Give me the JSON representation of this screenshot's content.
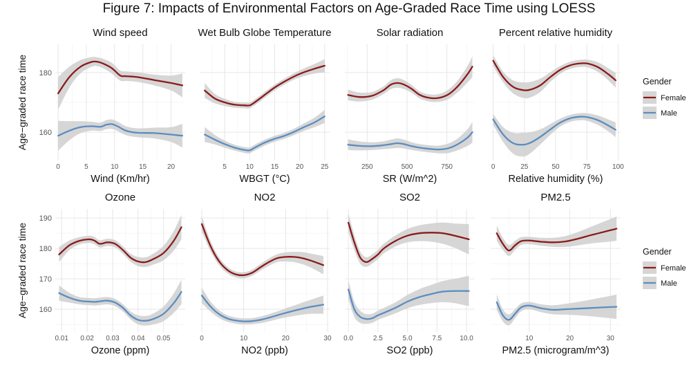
{
  "figure_title": "Figure 7: Impacts of Environmental Factors on Age-Graded Race Time using LOESS",
  "y_label": "Age−graded race time",
  "legend": {
    "title": "Gender",
    "entries": [
      {
        "label": "Female",
        "color": "#8B1A1A"
      },
      {
        "label": "Male",
        "color": "#5B8DC0"
      }
    ]
  },
  "colors": {
    "female": "#8B1A1A",
    "male": "#5B8DC0",
    "band": "#CFCFCF",
    "panel_bg": "#FFFFFF",
    "grid_major": "#E6E6E6",
    "grid_minor": "#F3F3F3"
  },
  "chart_data": [
    {
      "type": "line",
      "title": "Wind speed",
      "xlabel": "Wind  (Km/hr)",
      "ylabel": "Age−graded race time",
      "xlim": [
        -0.5,
        22.5
      ],
      "ylim": [
        150.5,
        189.5
      ],
      "xticks": [
        0,
        5,
        10,
        15,
        20
      ],
      "yticks": [
        160,
        180
      ],
      "series": [
        {
          "name": "Female",
          "x": [
            0,
            2,
            4,
            6,
            7,
            8,
            9.5,
            11,
            12,
            14,
            17,
            20,
            22
          ],
          "y": [
            173,
            178.5,
            182,
            183.6,
            183.6,
            183,
            181.5,
            179,
            178.8,
            178.5,
            177.5,
            176.5,
            175.7
          ],
          "band": [
            5.5,
            3.5,
            2.2,
            1.6,
            1.5,
            1.6,
            1.8,
            1.7,
            1.6,
            1.6,
            1.8,
            2.5,
            4
          ]
        },
        {
          "name": "Male",
          "x": [
            0,
            2,
            4,
            6,
            7.5,
            8.5,
            9.5,
            10.5,
            12,
            14,
            17,
            20,
            22
          ],
          "y": [
            158.8,
            160.5,
            161.7,
            162,
            161.8,
            162.5,
            162.7,
            162,
            160.5,
            159.8,
            159.7,
            159.2,
            158.8
          ],
          "band": [
            5,
            3.2,
            2,
            1.5,
            1.4,
            1.5,
            1.6,
            1.6,
            1.5,
            1.5,
            1.8,
            2.5,
            4
          ]
        }
      ]
    },
    {
      "type": "line",
      "title": "Wet Bulb Globe Temperature",
      "xlabel": "WBGT  (°C)",
      "ylabel": "Age−graded race time",
      "xlim": [
        0,
        26
      ],
      "ylim": [
        150.5,
        189.5
      ],
      "xticks": [
        5,
        10,
        15,
        20,
        25
      ],
      "yticks": [
        160,
        180
      ],
      "series": [
        {
          "name": "Female",
          "x": [
            1,
            3,
            5,
            7,
            9,
            10,
            11,
            13,
            15,
            17,
            19,
            21,
            23,
            25
          ],
          "y": [
            174,
            171.3,
            170,
            169.2,
            169,
            169,
            170,
            172.5,
            175,
            177,
            178.8,
            180.2,
            181.3,
            182.3
          ],
          "band": [
            2.5,
            1.6,
            1.2,
            1,
            1,
            1,
            1,
            1,
            1,
            1,
            1.1,
            1.3,
            1.6,
            2.2
          ]
        },
        {
          "name": "Male",
          "x": [
            1,
            3,
            5,
            7,
            9,
            10,
            11,
            13,
            15,
            17,
            19,
            21,
            23,
            25
          ],
          "y": [
            159.2,
            157.5,
            156,
            154.8,
            154,
            153.9,
            154.8,
            156.5,
            157.8,
            158.8,
            160.2,
            161.8,
            163.3,
            165.3
          ],
          "band": [
            2.5,
            1.6,
            1.2,
            1,
            1,
            1,
            1,
            1,
            1,
            1,
            1.1,
            1.3,
            1.6,
            2.2
          ]
        }
      ]
    },
    {
      "type": "line",
      "title": "Solar radiation",
      "xlabel": "SR  (W/m^2)",
      "ylabel": "Age−graded race time",
      "xlim": [
        110,
        925
      ],
      "ylim": [
        150.5,
        189.5
      ],
      "xticks": [
        250,
        500,
        750
      ],
      "yticks": [
        160,
        180
      ],
      "series": [
        {
          "name": "Female",
          "x": [
            130,
            200,
            280,
            350,
            400,
            440,
            480,
            530,
            580,
            640,
            700,
            760,
            820,
            880,
            910
          ],
          "y": [
            172.5,
            171.8,
            172.2,
            174,
            176,
            176.5,
            176,
            174.5,
            172.5,
            171.5,
            171.5,
            172.7,
            175.5,
            179.5,
            182
          ],
          "band": [
            1.8,
            1.5,
            1.3,
            1.3,
            1.5,
            1.6,
            1.5,
            1.3,
            1.2,
            1.2,
            1.3,
            1.6,
            2,
            2.8,
            3.5
          ]
        },
        {
          "name": "Male",
          "x": [
            130,
            200,
            280,
            350,
            400,
            440,
            480,
            530,
            580,
            640,
            700,
            760,
            820,
            880,
            910
          ],
          "y": [
            155.8,
            155.4,
            155.3,
            155.6,
            156,
            156.3,
            156,
            155.3,
            154.8,
            154.4,
            154.2,
            154.6,
            156,
            158.2,
            160
          ],
          "band": [
            1.8,
            1.5,
            1.3,
            1.3,
            1.5,
            1.6,
            1.5,
            1.3,
            1.2,
            1.2,
            1.3,
            1.6,
            2,
            2.8,
            3.5
          ]
        }
      ]
    },
    {
      "type": "line",
      "title": "Percent relative humidity",
      "xlabel": "Relative humidity (%)",
      "ylabel": "Age−graded race time",
      "xlim": [
        -2,
        102
      ],
      "ylim": [
        150.5,
        189.5
      ],
      "xticks": [
        0,
        25,
        50,
        75,
        100
      ],
      "yticks": [
        160,
        180
      ],
      "series": [
        {
          "name": "Female",
          "x": [
            0,
            8,
            16,
            24,
            30,
            38,
            46,
            54,
            62,
            70,
            76,
            84,
            92,
            98
          ],
          "y": [
            184,
            178.5,
            175.2,
            174.1,
            174.3,
            175.8,
            178.6,
            181,
            182.5,
            183.1,
            183,
            181.8,
            179.5,
            177.4
          ],
          "band": [
            1.8,
            1.8,
            2.2,
            2.6,
            2.6,
            2.2,
            1.6,
            1.3,
            1.2,
            1.2,
            1.3,
            1.6,
            2,
            2.5
          ]
        },
        {
          "name": "Male",
          "x": [
            0,
            8,
            16,
            24,
            30,
            38,
            46,
            54,
            62,
            70,
            76,
            84,
            92,
            98
          ],
          "y": [
            164.3,
            159.2,
            156.3,
            155.8,
            156.5,
            158.5,
            161,
            163.3,
            164.7,
            165.2,
            165,
            164,
            162.3,
            160.8
          ],
          "band": [
            1.8,
            2.5,
            3.5,
            4,
            3.5,
            2.5,
            1.8,
            1.3,
            1.2,
            1.2,
            1.3,
            1.6,
            2,
            2.5
          ]
        }
      ]
    },
    {
      "type": "line",
      "title": "Ozone",
      "xlabel": "Ozone  (ppm)",
      "ylabel": "Age−graded race time",
      "xlim": [
        0.0075,
        0.0585
      ],
      "ylim": [
        152.5,
        193
      ],
      "xticks": [
        0.01,
        0.02,
        0.03,
        0.04,
        0.05
      ],
      "yticks": [
        160,
        170,
        180,
        190
      ],
      "series": [
        {
          "name": "Female",
          "x": [
            0.009,
            0.013,
            0.017,
            0.021,
            0.023,
            0.025,
            0.028,
            0.031,
            0.034,
            0.037,
            0.04,
            0.043,
            0.046,
            0.05,
            0.054,
            0.057
          ],
          "y": [
            178,
            181,
            182.5,
            183,
            182.5,
            181.5,
            182,
            181.5,
            179.5,
            177,
            175.7,
            175.5,
            176.5,
            178.5,
            182.5,
            187
          ],
          "band": [
            2.5,
            1.6,
            1.2,
            1.2,
            1.2,
            1.2,
            1.2,
            1.2,
            1.2,
            1.3,
            1.5,
            1.6,
            1.8,
            2.4,
            3.2,
            4
          ]
        },
        {
          "name": "Male",
          "x": [
            0.009,
            0.013,
            0.017,
            0.021,
            0.023,
            0.025,
            0.028,
            0.031,
            0.034,
            0.037,
            0.04,
            0.043,
            0.046,
            0.05,
            0.054,
            0.057
          ],
          "y": [
            165.3,
            163.8,
            162.8,
            162.5,
            162.4,
            162.6,
            162.8,
            162.2,
            160.5,
            158,
            156.5,
            156.2,
            156.8,
            158.5,
            162,
            165.7
          ],
          "band": [
            2.5,
            1.6,
            1.2,
            1.2,
            1.2,
            1.2,
            1.2,
            1.2,
            1.2,
            1.3,
            1.5,
            1.6,
            1.8,
            2.4,
            3.2,
            4
          ]
        }
      ]
    },
    {
      "type": "line",
      "title": "NO2",
      "xlabel": "NO2  (ppb)",
      "ylabel": "Age−graded race time",
      "xlim": [
        -0.5,
        30.5
      ],
      "ylim": [
        152.5,
        193
      ],
      "xticks": [
        0,
        10,
        20,
        30
      ],
      "yticks": [
        160,
        170,
        180,
        190
      ],
      "series": [
        {
          "name": "Female",
          "x": [
            0,
            2,
            4,
            6,
            8,
            10,
            12,
            14,
            16,
            18,
            20,
            22,
            24,
            26,
            29
          ],
          "y": [
            188,
            181,
            176,
            173,
            171.5,
            171.2,
            172,
            173.8,
            175.5,
            176.8,
            177.2,
            177.2,
            176.8,
            176,
            174.5
          ],
          "band": [
            2.5,
            1.7,
            1.3,
            1.1,
            1,
            1,
            1,
            1.1,
            1.2,
            1.3,
            1.5,
            1.7,
            2,
            2.3,
            3
          ]
        },
        {
          "name": "Male",
          "x": [
            0,
            2,
            4,
            6,
            8,
            10,
            12,
            14,
            16,
            18,
            20,
            22,
            24,
            26,
            29
          ],
          "y": [
            164.5,
            161,
            158.5,
            157,
            156.3,
            156,
            156.1,
            156.5,
            157.2,
            158,
            158.8,
            159.5,
            160.2,
            160.8,
            161.5
          ],
          "band": [
            2.5,
            1.7,
            1.3,
            1.1,
            1,
            1,
            1,
            1.1,
            1.2,
            1.3,
            1.5,
            1.7,
            2,
            2.3,
            3
          ]
        }
      ]
    },
    {
      "type": "line",
      "title": "SO2",
      "xlabel": "SO2  (ppb)",
      "ylabel": "Age−graded race time",
      "xlim": [
        -0.3,
        10.7
      ],
      "ylim": [
        152.5,
        193
      ],
      "xticks": [
        0,
        2.5,
        5,
        7.5,
        10
      ],
      "xtick_labels": [
        "0.0",
        "2.5",
        "5.0",
        "7.5",
        "10.0"
      ],
      "yticks": [
        160,
        170,
        180,
        190
      ],
      "series": [
        {
          "name": "Female",
          "x": [
            0,
            0.5,
            1,
            1.5,
            2,
            2.5,
            3,
            4,
            5,
            6,
            7,
            8,
            9,
            10.2
          ],
          "y": [
            188.5,
            182,
            177,
            175.5,
            176.5,
            178,
            180,
            182.5,
            184.2,
            185,
            185.2,
            185,
            184.2,
            183
          ],
          "band": [
            3,
            2.5,
            2,
            1.6,
            1.5,
            1.5,
            1.6,
            1.8,
            2.2,
            2.6,
            3,
            3.5,
            4,
            5
          ]
        },
        {
          "name": "Male",
          "x": [
            0,
            0.5,
            1,
            1.5,
            2,
            2.5,
            3,
            4,
            5,
            6,
            7,
            8,
            9,
            10.2
          ],
          "y": [
            166.5,
            160,
            157.5,
            156.8,
            157,
            158,
            158.8,
            160.5,
            162.5,
            164,
            165,
            165.8,
            166,
            166
          ],
          "band": [
            3,
            2.5,
            2,
            1.6,
            1.5,
            1.5,
            1.6,
            1.8,
            2.2,
            2.6,
            3,
            3.5,
            4,
            5
          ]
        }
      ]
    },
    {
      "type": "line",
      "title": "PM2.5",
      "xlabel": "PM2.5 (microgram/m^3)",
      "ylabel": "Age−graded race time",
      "xlim": [
        0.5,
        32.5
      ],
      "ylim": [
        152.5,
        193
      ],
      "xticks": [
        10,
        20,
        30
      ],
      "yticks": [
        160,
        170,
        180,
        190
      ],
      "series": [
        {
          "name": "Female",
          "x": [
            2,
            3.5,
            5,
            6.5,
            8,
            10,
            13,
            16,
            19,
            22,
            25,
            28,
            31.5
          ],
          "y": [
            185,
            181.5,
            179.3,
            181,
            182.4,
            182.6,
            182.2,
            182,
            182.3,
            183.2,
            184.3,
            185.3,
            186.5
          ],
          "band": [
            2.5,
            2,
            1.8,
            1.5,
            1.3,
            1.2,
            1.3,
            1.5,
            1.8,
            2.2,
            2.7,
            3.3,
            4
          ]
        },
        {
          "name": "Male",
          "x": [
            2,
            3.5,
            5,
            6.5,
            8,
            10,
            13,
            16,
            19,
            22,
            25,
            28,
            31.5
          ],
          "y": [
            162.3,
            158,
            156.5,
            158.5,
            160.6,
            161.2,
            160.3,
            159.8,
            160,
            160.2,
            160.4,
            160.6,
            160.8
          ],
          "band": [
            2.5,
            2,
            1.8,
            1.5,
            1.3,
            1.2,
            1.3,
            1.5,
            1.8,
            2.2,
            2.7,
            3.3,
            4
          ]
        }
      ]
    }
  ]
}
